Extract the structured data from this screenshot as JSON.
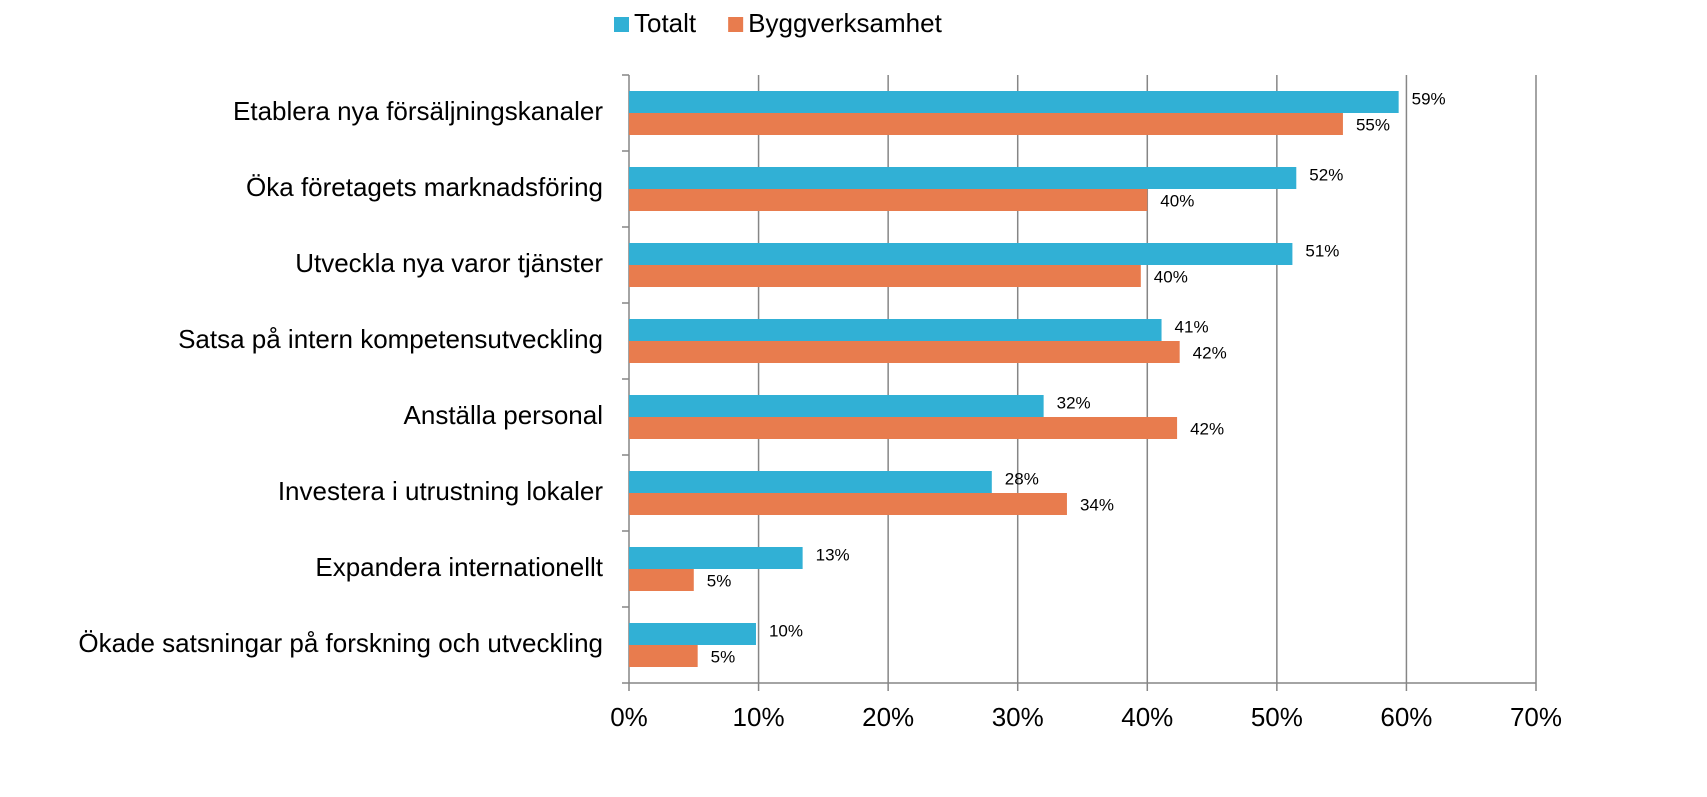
{
  "chart_data": {
    "type": "hbar",
    "categories": [
      "Etablera nya försäljningskanaler",
      "Öka företagets marknadsföring",
      "Utveckla nya varor tjänster",
      "Satsa på intern kompetensutveckling",
      "Anställa personal",
      "Investera i utrustning lokaler",
      "Expandera internationellt",
      "Ökade satsningar på forskning och utveckling"
    ],
    "series": [
      {
        "name": "Totalt",
        "color": "#31b0d5",
        "values": [
          59.4,
          51.5,
          51.2,
          41.1,
          32.0,
          28.0,
          13.4,
          9.8
        ],
        "value_labels": [
          "59%",
          "52%",
          "51%",
          "41%",
          "32%",
          "28%",
          "13%",
          "10%"
        ]
      },
      {
        "name": "Byggverksamhet",
        "color": "#e87c4e",
        "values": [
          55.1,
          40.0,
          39.5,
          42.5,
          42.3,
          33.8,
          5.0,
          5.3
        ],
        "value_labels": [
          "55%",
          "40%",
          "40%",
          "42%",
          "42%",
          "34%",
          "5%",
          "5%"
        ]
      }
    ],
    "xlim": [
      0,
      70
    ],
    "xticks": [
      {
        "value": 0,
        "label": "0%"
      },
      {
        "value": 10,
        "label": "10%"
      },
      {
        "value": 20,
        "label": "20%"
      },
      {
        "value": 30,
        "label": "30%"
      },
      {
        "value": 40,
        "label": "40%"
      },
      {
        "value": 50,
        "label": "50%"
      },
      {
        "value": 60,
        "label": "60%"
      },
      {
        "value": 70,
        "label": "70%"
      }
    ],
    "grid": true,
    "legend": "top"
  }
}
